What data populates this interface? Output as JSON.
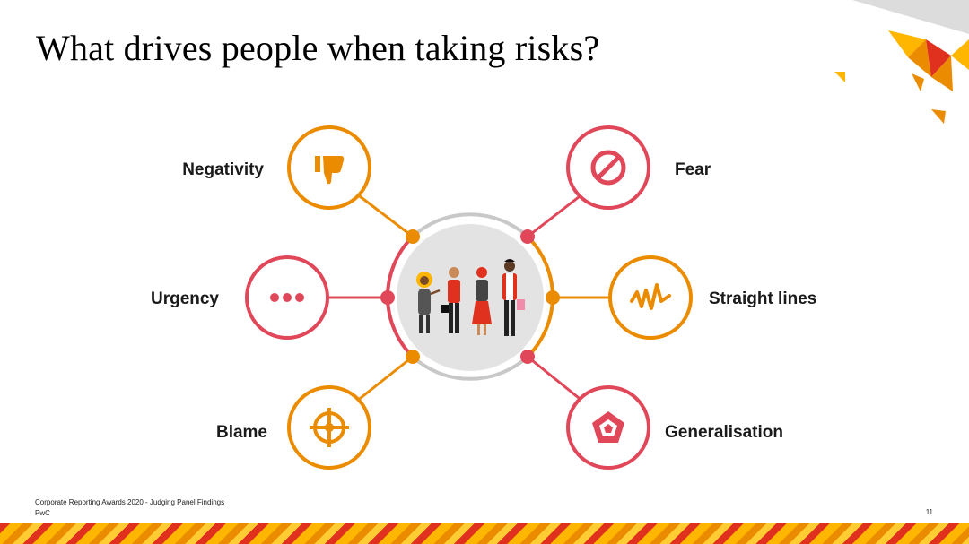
{
  "slide": {
    "title": "What drives people when taking risks?",
    "footer_line1": "Corporate Reporting Awards 2020 - Judging Panel Findings",
    "footer_line2": "PwC",
    "page_number": "11"
  },
  "diagram": {
    "center_icon": "group-of-people-illustration",
    "nodes": [
      {
        "label": "Negativity",
        "icon": "thumbs-down-icon",
        "color": "#eb8c00"
      },
      {
        "label": "Fear",
        "icon": "prohibited-icon",
        "color": "#e0485a"
      },
      {
        "label": "Urgency",
        "icon": "ellipsis-icon",
        "color": "#e0485a"
      },
      {
        "label": "Straight lines",
        "icon": "waveform-icon",
        "color": "#eb8c00"
      },
      {
        "label": "Blame",
        "icon": "target-icon",
        "color": "#eb8c00"
      },
      {
        "label": "Generalisation",
        "icon": "pentagon-icon",
        "color": "#e0485a"
      }
    ]
  },
  "colors": {
    "orange": "#eb8c00",
    "red": "#e0485a",
    "center_fill": "#e3e3e3",
    "center_ring": "#c8c8c8"
  }
}
